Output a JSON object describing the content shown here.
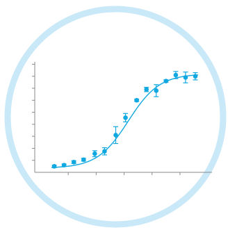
{
  "colors": {
    "ring": "#c9e8f8",
    "series": "#10a8e0",
    "axis": "#8a8a8a",
    "background": "#ffffff"
  },
  "chart_data": {
    "type": "scatter",
    "title": "",
    "xlabel": "",
    "ylabel": "",
    "grid": false,
    "legend": "none",
    "xlim": [
      0,
      11
    ],
    "ylim": [
      0,
      9.2
    ],
    "x_ticks": [
      2,
      4,
      6,
      8,
      10
    ],
    "y_ticks": [
      1,
      2,
      3,
      4,
      5,
      6,
      7,
      8,
      9
    ],
    "fit": {
      "model": "sigmoid",
      "bottom": 0.35,
      "top": 8.2,
      "midpoint": 6.3,
      "slope": 0.9
    },
    "series": [
      {
        "points": [
          {
            "x": 1.0,
            "y": 0.5,
            "err": 0.1
          },
          {
            "x": 1.7,
            "y": 0.6,
            "err": 0.1
          },
          {
            "x": 2.4,
            "y": 0.85,
            "err": 0.12
          },
          {
            "x": 3.1,
            "y": 1.05,
            "err": 0.12
          },
          {
            "x": 3.9,
            "y": 1.55,
            "err": 0.25
          },
          {
            "x": 4.6,
            "y": 1.75,
            "err": 0.3
          },
          {
            "x": 5.4,
            "y": 3.1,
            "err": 0.7
          },
          {
            "x": 6.1,
            "y": 4.55,
            "err": 0.35
          },
          {
            "x": 6.9,
            "y": 6.0,
            "err": 0.1
          },
          {
            "x": 7.6,
            "y": 6.9,
            "err": 0.18
          },
          {
            "x": 8.3,
            "y": 6.8,
            "err": 0.5
          },
          {
            "x": 9.0,
            "y": 7.6,
            "err": 0.1
          },
          {
            "x": 9.7,
            "y": 8.1,
            "err": 0.3
          },
          {
            "x": 10.4,
            "y": 7.9,
            "err": 0.45
          },
          {
            "x": 11.1,
            "y": 8.0,
            "err": 0.3
          }
        ]
      }
    ]
  }
}
